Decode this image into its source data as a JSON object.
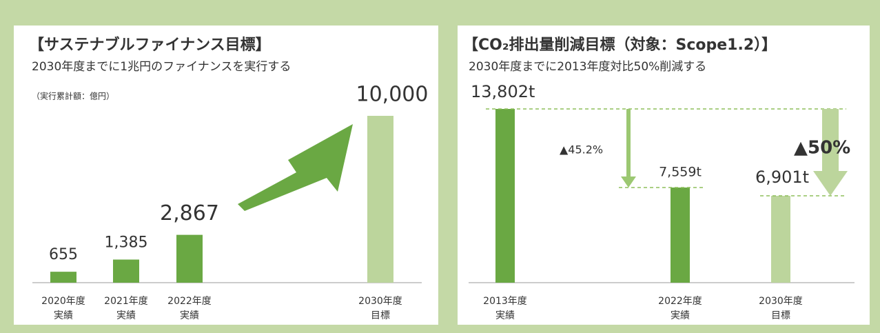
{
  "chart_data": [
    {
      "type": "bar",
      "title": "【サステナブルファイナンス目標】",
      "subtitle": "2030年度までに1兆円のファイナンスを実行する",
      "unit_note": "（実行累計額：億円）",
      "categories": [
        [
          "2020年度",
          "実績"
        ],
        [
          "2021年度",
          "実績"
        ],
        [
          "2022年度",
          "実績"
        ],
        [
          "2030年度",
          "目標"
        ]
      ],
      "values": [
        655,
        1385,
        2867,
        10000
      ],
      "value_labels": [
        "655",
        "1,385",
        "2,867",
        "10,000"
      ],
      "colors": [
        "#6aa843",
        "#6aa843",
        "#6aa843",
        "#bcd59c"
      ]
    },
    {
      "type": "bar",
      "title": "【CO₂排出量削減目標（対象：Scope1.2）】",
      "subtitle": "2030年度までに2013年度対比50%削減する",
      "categories": [
        [
          "2013年度",
          "実績"
        ],
        [
          "2022年度",
          "実績"
        ],
        [
          "2030年度",
          "目標"
        ]
      ],
      "values": [
        13802,
        7559,
        6901
      ],
      "value_labels": [
        "13,802t",
        "7,559t",
        "6,901t"
      ],
      "colors": [
        "#6aa843",
        "#6aa843",
        "#bcd59c"
      ],
      "annotations": [
        "▲45.2%",
        "▲50%"
      ]
    }
  ]
}
